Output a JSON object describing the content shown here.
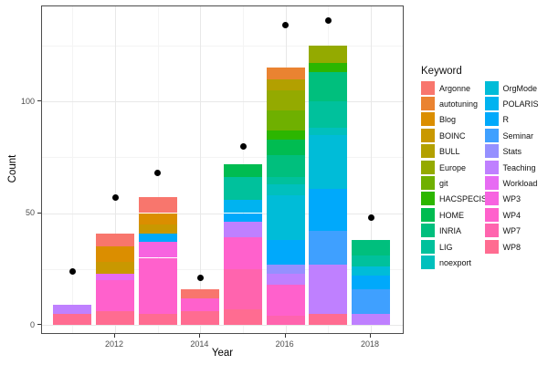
{
  "chart_data": {
    "type": "bar",
    "stacked": true,
    "title": "",
    "xlabel": "Year",
    "ylabel": "Count",
    "legend_title": "Keyword",
    "legend_position": "right",
    "grid": true,
    "background": "#ffffff",
    "point_color": "#000000",
    "x_axis": {
      "tick_labels": [
        "2012",
        "2014",
        "2016",
        "2018"
      ],
      "tick_years": [
        2012,
        2014,
        2016,
        2018
      ],
      "minor_years": [
        2011,
        2013,
        2015,
        2017
      ],
      "range": [
        2010.3,
        2018.7
      ]
    },
    "y_axis": {
      "tick_labels": [
        "0",
        "50",
        "100"
      ],
      "tick_values": [
        0,
        50,
        100
      ],
      "minor_values": [
        25,
        75,
        125
      ],
      "range": [
        -4.5,
        141.5
      ]
    },
    "keywords": [
      {
        "name": "Argonne",
        "color": "#F8766D"
      },
      {
        "name": "autotuning",
        "color": "#EA8331"
      },
      {
        "name": "Blog",
        "color": "#DB8E00"
      },
      {
        "name": "BOINC",
        "color": "#C99800"
      },
      {
        "name": "BULL",
        "color": "#B3A000"
      },
      {
        "name": "Europe",
        "color": "#94AA00"
      },
      {
        "name": "git",
        "color": "#6FB000"
      },
      {
        "name": "HACSPECIS",
        "color": "#2CB600"
      },
      {
        "name": "HOME",
        "color": "#00BC51"
      },
      {
        "name": "INRIA",
        "color": "#00BF7D"
      },
      {
        "name": "LIG",
        "color": "#00C19C"
      },
      {
        "name": "noexport",
        "color": "#00C0BD"
      },
      {
        "name": "OrgMode",
        "color": "#00BCD8"
      },
      {
        "name": "POLARIS",
        "color": "#00B3F0"
      },
      {
        "name": "R",
        "color": "#00A9FB"
      },
      {
        "name": "Seminar",
        "color": "#3FA0FF"
      },
      {
        "name": "Stats",
        "color": "#9590FF"
      },
      {
        "name": "Teaching",
        "color": "#BF80FF"
      },
      {
        "name": "Workload",
        "color": "#E76BF3"
      },
      {
        "name": "WP3",
        "color": "#F763E0"
      },
      {
        "name": "WP4",
        "color": "#FF61CC"
      },
      {
        "name": "WP7",
        "color": "#FF64AE"
      },
      {
        "name": "WP8",
        "color": "#FF6C91"
      }
    ],
    "bars_note": "segments listed bottom-to-top; values estimated from gridlines",
    "bars": [
      {
        "year": 2011,
        "total": 9,
        "segments": [
          {
            "keyword": "WP8",
            "value": 5
          },
          {
            "keyword": "Teaching",
            "value": 4
          }
        ]
      },
      {
        "year": 2012,
        "total": 41,
        "segments": [
          {
            "keyword": "WP8",
            "value": 6
          },
          {
            "keyword": "WP4",
            "value": 14
          },
          {
            "keyword": "Workload",
            "value": 3
          },
          {
            "keyword": "BOINC",
            "value": 5
          },
          {
            "keyword": "Blog",
            "value": 7
          },
          {
            "keyword": "Argonne",
            "value": 6
          }
        ]
      },
      {
        "year": 2013,
        "total": 57,
        "segments": [
          {
            "keyword": "WP8",
            "value": 5
          },
          {
            "keyword": "WP4",
            "value": 25
          },
          {
            "keyword": "WP3",
            "value": 7
          },
          {
            "keyword": "R",
            "value": 4
          },
          {
            "keyword": "BOINC",
            "value": 4
          },
          {
            "keyword": "Blog",
            "value": 5
          },
          {
            "keyword": "Argonne",
            "value": 7
          }
        ]
      },
      {
        "year": 2014,
        "total": 16,
        "segments": [
          {
            "keyword": "WP8",
            "value": 6
          },
          {
            "keyword": "WP4",
            "value": 6
          },
          {
            "keyword": "Argonne",
            "value": 4
          }
        ]
      },
      {
        "year": 2015,
        "total": 72,
        "segments": [
          {
            "keyword": "WP8",
            "value": 7
          },
          {
            "keyword": "WP7",
            "value": 18
          },
          {
            "keyword": "WP4",
            "value": 14
          },
          {
            "keyword": "Teaching",
            "value": 7
          },
          {
            "keyword": "R",
            "value": 4
          },
          {
            "keyword": "POLARIS",
            "value": 6
          },
          {
            "keyword": "LIG",
            "value": 10
          },
          {
            "keyword": "HOME",
            "value": 6
          }
        ]
      },
      {
        "year": 2016,
        "total": 115,
        "segments": [
          {
            "keyword": "WP7",
            "value": 4
          },
          {
            "keyword": "WP4",
            "value": 14
          },
          {
            "keyword": "Teaching",
            "value": 5
          },
          {
            "keyword": "Stats",
            "value": 4
          },
          {
            "keyword": "R",
            "value": 11
          },
          {
            "keyword": "OrgMode",
            "value": 20
          },
          {
            "keyword": "noexport",
            "value": 5
          },
          {
            "keyword": "LIG",
            "value": 3
          },
          {
            "keyword": "INRIA",
            "value": 10
          },
          {
            "keyword": "HOME",
            "value": 7
          },
          {
            "keyword": "HACSPECIS",
            "value": 4
          },
          {
            "keyword": "git",
            "value": 9
          },
          {
            "keyword": "Europe",
            "value": 9
          },
          {
            "keyword": "BULL",
            "value": 5
          },
          {
            "keyword": "autotuning",
            "value": 5
          }
        ]
      },
      {
        "year": 2017,
        "total": 125,
        "segments": [
          {
            "keyword": "WP8",
            "value": 5
          },
          {
            "keyword": "Teaching",
            "value": 22
          },
          {
            "keyword": "Seminar",
            "value": 15
          },
          {
            "keyword": "R",
            "value": 19
          },
          {
            "keyword": "OrgMode",
            "value": 24
          },
          {
            "keyword": "noexport",
            "value": 3
          },
          {
            "keyword": "LIG",
            "value": 12
          },
          {
            "keyword": "INRIA",
            "value": 13
          },
          {
            "keyword": "HACSPECIS",
            "value": 4
          },
          {
            "keyword": "Europe",
            "value": 8
          }
        ]
      },
      {
        "year": 2018,
        "total": 38,
        "segments": [
          {
            "keyword": "Teaching",
            "value": 5
          },
          {
            "keyword": "Seminar",
            "value": 11
          },
          {
            "keyword": "R",
            "value": 6
          },
          {
            "keyword": "OrgMode",
            "value": 4
          },
          {
            "keyword": "LIG",
            "value": 5
          },
          {
            "keyword": "INRIA",
            "value": 7
          }
        ]
      }
    ],
    "points": {
      "label": "black dots (yearly total)",
      "years": [
        2011,
        2012,
        2013,
        2014,
        2015,
        2016,
        2017,
        2018
      ],
      "values": [
        24,
        57,
        68,
        21,
        80,
        134,
        136,
        48
      ],
      "color": "#000000"
    }
  }
}
